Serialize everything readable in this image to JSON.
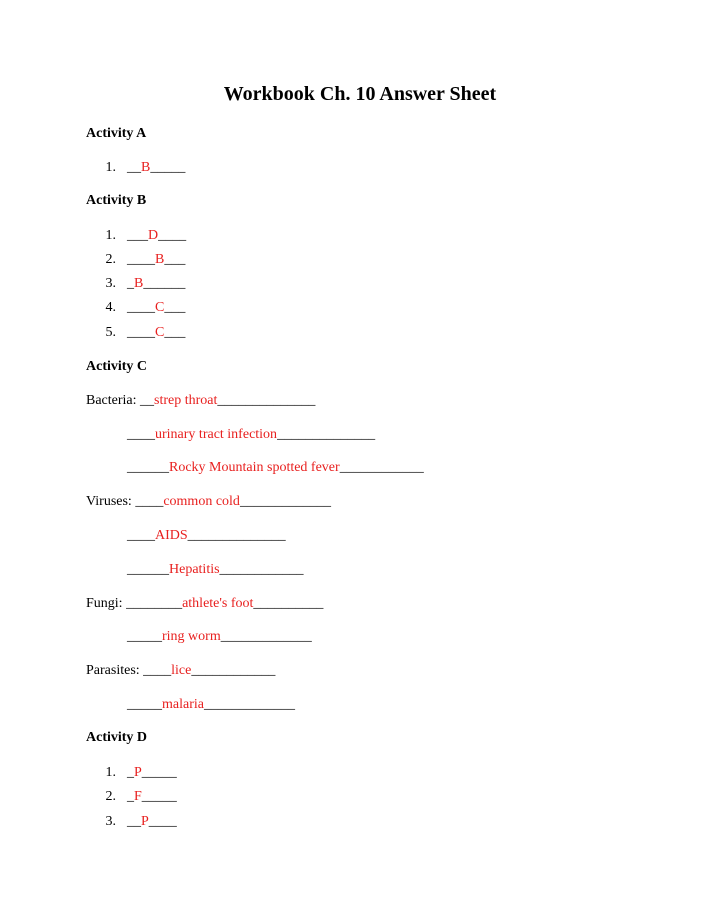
{
  "document": {
    "title": "Workbook Ch. 10 Answer Sheet",
    "colors": {
      "text": "#000000",
      "answer": "#e8201f"
    },
    "activity_a": {
      "heading": "Activity A",
      "items": [
        {
          "num": "1.",
          "pre": "__",
          "answer": "B",
          "post": "_____"
        }
      ]
    },
    "activity_b": {
      "heading": "Activity B",
      "items": [
        {
          "num": "1.",
          "pre": "___",
          "answer": "D",
          "post": "____"
        },
        {
          "num": "2.",
          "pre": "____",
          "answer": "B",
          "post": "___"
        },
        {
          "num": "3.",
          "pre": "_",
          "answer": "B",
          "post": "______"
        },
        {
          "num": "4.",
          "pre": "____",
          "answer": "C",
          "post": "___"
        },
        {
          "num": "5.",
          "pre": "____",
          "answer": "C",
          "post": "___"
        }
      ]
    },
    "activity_c": {
      "heading": "Activity C",
      "bacteria": {
        "label": "Bacteria: ",
        "rows": [
          {
            "pre": "__",
            "answer": "strep throat",
            "post": "______________"
          },
          {
            "pre": "____",
            "answer": "urinary tract infection",
            "post": "______________"
          },
          {
            "pre": "______",
            "answer": "Rocky Mountain spotted fever",
            "post": "____________"
          }
        ]
      },
      "viruses": {
        "label": "Viruses: ",
        "rows": [
          {
            "pre": "____",
            "answer": "common cold",
            "post": "_____________"
          },
          {
            "pre": "____",
            "answer": "AIDS",
            "post": "______________"
          },
          {
            "pre": "______",
            "answer": "Hepatitis",
            "post": "____________"
          }
        ]
      },
      "fungi": {
        "label": "Fungi: ",
        "rows": [
          {
            "pre": "________",
            "answer": "athlete's foot",
            "post": "__________"
          },
          {
            "pre": "_____",
            "answer": "ring worm",
            "post": "_____________"
          }
        ]
      },
      "parasites": {
        "label": "Parasites: ",
        "rows": [
          {
            "pre": "____",
            "answer": "lice",
            "post": "____________"
          },
          {
            "pre": "_____",
            "answer": "malaria",
            "post": "_____________"
          }
        ]
      }
    },
    "activity_d": {
      "heading": "Activity D",
      "items": [
        {
          "num": "1.",
          "pre": "_",
          "answer": "P",
          "post": "_____"
        },
        {
          "num": "2.",
          "pre": "_",
          "answer": "F",
          "post": "_____"
        },
        {
          "num": "3.",
          "pre": "__",
          "answer": "P",
          "post": "____"
        }
      ]
    }
  }
}
